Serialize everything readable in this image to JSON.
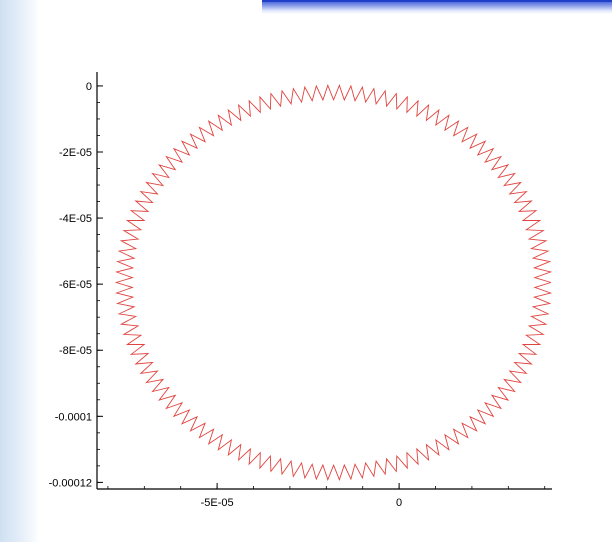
{
  "chart_data": {
    "type": "line",
    "title": "",
    "xlabel": "",
    "ylabel": "",
    "xlim": [
      -8.3e-05,
      4.2e-05
    ],
    "ylim": [
      -0.000122,
      3e-06
    ],
    "x_ticks": [
      {
        "value": -5e-05,
        "label": "-5E-05"
      },
      {
        "value": 0,
        "label": "0"
      }
    ],
    "y_ticks": [
      {
        "value": 0,
        "label": "0"
      },
      {
        "value": -2e-05,
        "label": "-2E-05"
      },
      {
        "value": -4e-05,
        "label": "-4E-05"
      },
      {
        "value": -6e-05,
        "label": "-6E-05"
      },
      {
        "value": -8e-05,
        "label": "-8E-05"
      },
      {
        "value": -0.0001,
        "label": "-0.0001"
      },
      {
        "value": -0.00012,
        "label": "-0.00012"
      }
    ],
    "grid": false,
    "series": [
      {
        "color": "#e0443f",
        "shape": "zigzag ring around a circular path",
        "center": [
          -1.8e-05,
          -5.95e-05
        ],
        "radius": 5.75e-05,
        "oscillation_amplitude": 2.2e-06,
        "oscillation_cycles": 118
      }
    ]
  }
}
